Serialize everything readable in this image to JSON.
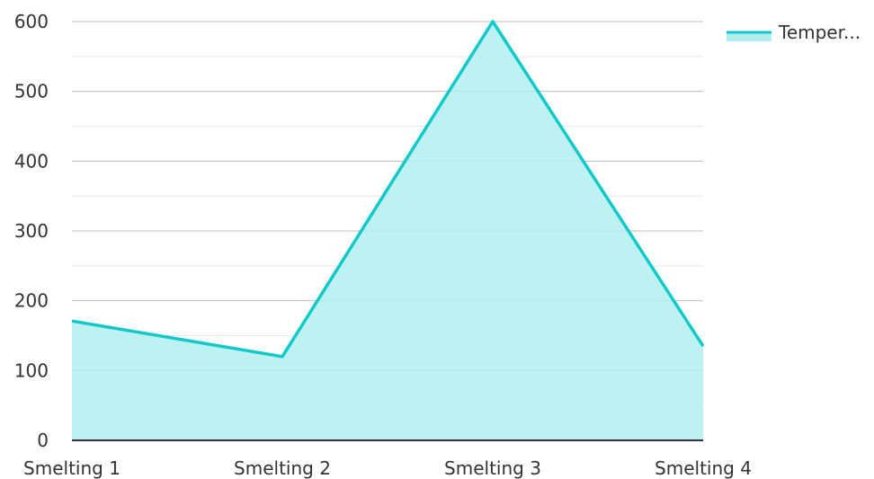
{
  "chart_data": {
    "type": "area",
    "categories": [
      "Smelting 1",
      "Smelting 2",
      "Smelting 3",
      "Smelting 4"
    ],
    "series": [
      {
        "name": "Temper...",
        "values": [
          171,
          120,
          600,
          135
        ]
      }
    ],
    "ylim": [
      0,
      600
    ],
    "yticks": [
      0,
      100,
      200,
      300,
      400,
      500,
      600
    ],
    "ytick_labels": [
      "0",
      "100",
      "200",
      "300",
      "400",
      "500",
      "600"
    ],
    "grid": true,
    "minor_grid": true,
    "legend_position": "top-right",
    "colors": {
      "line": "#12C9C9",
      "fill": "#B3EEEE",
      "grid_major": "#BDBDBD",
      "grid_minor": "#E8E8E8",
      "axis": "#333333"
    }
  }
}
